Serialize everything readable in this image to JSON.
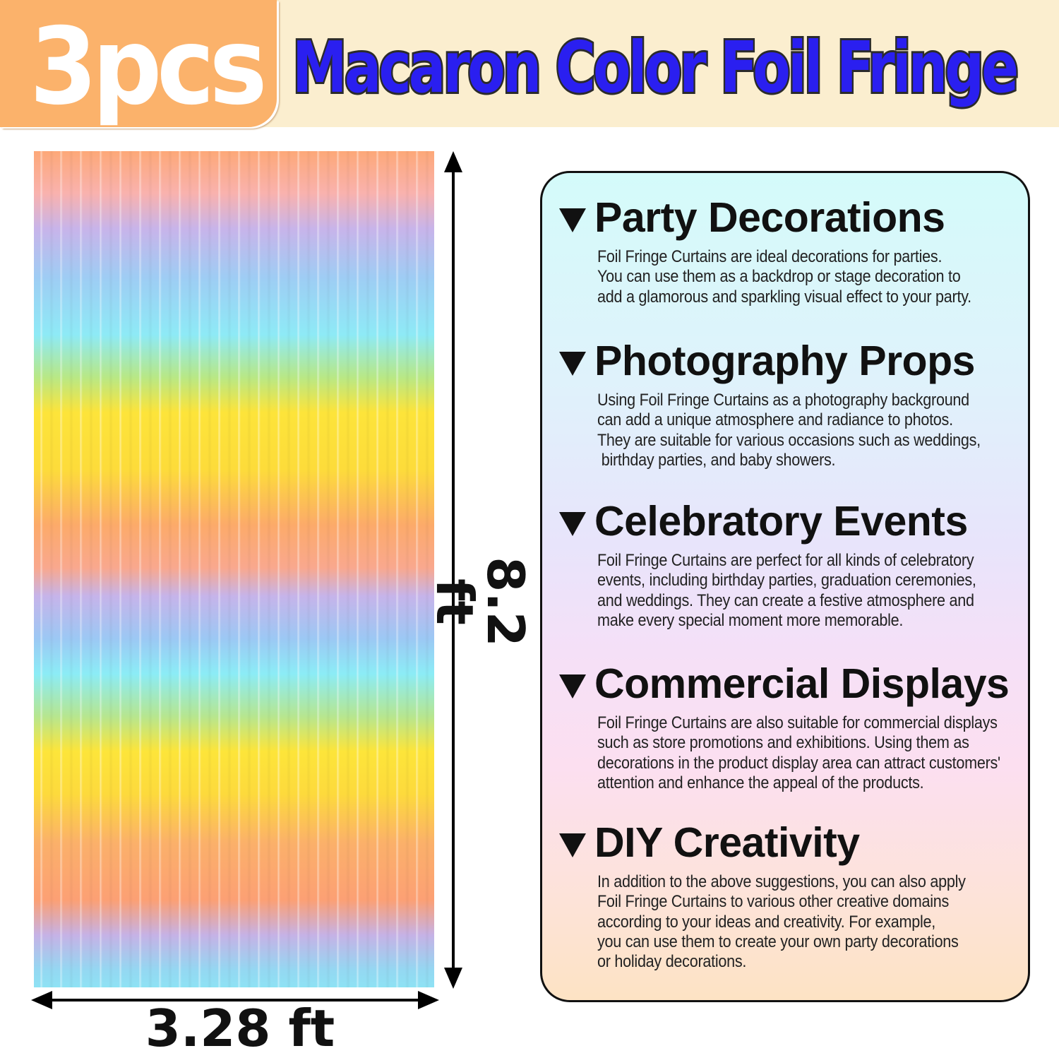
{
  "banner": {
    "count": "3pcs",
    "title": "Macaron Color Foil Fringe",
    "title_color": "#2a1ff0",
    "badge_color": "#fbb26b"
  },
  "dimensions": {
    "height": "8.2 ft",
    "width": "3.28 ft"
  },
  "sections": [
    {
      "heading": "Party Decorations",
      "lines": [
        "Foil Fringe Curtains are ideal decorations for parties.",
        "You can use them as a backdrop or stage decoration to",
        "add a glamorous and sparkling visual effect to your party."
      ]
    },
    {
      "heading": "Photography Props",
      "lines": [
        "Using Foil Fringe Curtains as a photography background",
        "can add a unique atmosphere and radiance to photos.",
        "They are suitable for various occasions such as weddings,",
        " birthday parties, and baby showers."
      ]
    },
    {
      "heading": "Celebratory Events",
      "lines": [
        "Foil Fringe Curtains are perfect for all kinds of celebratory",
        "events, including birthday parties, graduation ceremonies,",
        "and weddings. They can create a festive atmosphere and",
        "make every special moment more memorable."
      ]
    },
    {
      "heading": "Commercial Displays",
      "lines": [
        "Foil Fringe Curtains are also suitable for commercial displays",
        "such as store promotions and exhibitions. Using them as",
        "decorations in the product display area can attract customers'",
        "attention and enhance the appeal of the products."
      ]
    },
    {
      "heading": "DIY Creativity",
      "lines": [
        "In addition to the above suggestions, you can also apply",
        "Foil Fringe Curtains to various other creative domains",
        "according to your ideas and creativity. For example,",
        "you can use them to create your own party decorations",
        "or holiday decorations."
      ]
    }
  ]
}
